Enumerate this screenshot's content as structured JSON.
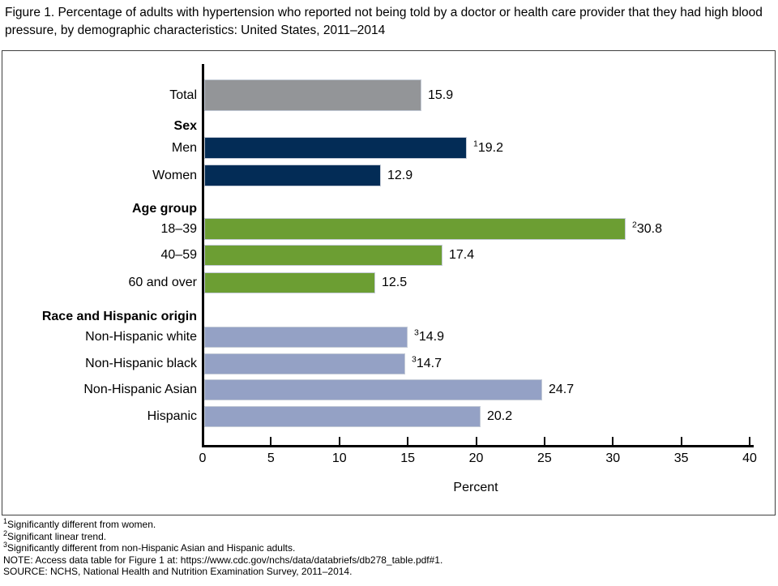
{
  "figure": {
    "title": "Figure 1. Percentage of adults with hypertension who reported not being told by a doctor or health care provider that they had high blood pressure, by demographic characteristics: United States, 2011–2014"
  },
  "chart_data": {
    "type": "bar",
    "orientation": "horizontal",
    "title": "Percentage of adults with hypertension who reported not being told by a doctor or health care provider that they had high blood pressure, by demographic characteristics: United States, 2011–2014",
    "xlabel": "Percent",
    "ylabel": "",
    "grid": false,
    "legend": "none",
    "axis": {
      "min": 0,
      "max": 40,
      "tick_interval": 5,
      "tick_labels": [
        "0",
        "5",
        "10",
        "15",
        "20",
        "25",
        "30",
        "35",
        "40"
      ]
    },
    "rows": [
      {
        "kind": "bar",
        "label": "Total",
        "value": 15.9,
        "value_label": "15.9",
        "sup": "",
        "color_key": "total"
      },
      {
        "kind": "header",
        "label": "Sex"
      },
      {
        "kind": "bar",
        "label": "Men",
        "value": 19.2,
        "value_label": "19.2",
        "sup": "1",
        "color_key": "sex"
      },
      {
        "kind": "bar",
        "label": "Women",
        "value": 12.9,
        "value_label": "12.9",
        "sup": "",
        "color_key": "sex"
      },
      {
        "kind": "header",
        "label": "Age group"
      },
      {
        "kind": "bar",
        "label": "18–39",
        "value": 30.8,
        "value_label": "30.8",
        "sup": "2",
        "color_key": "age"
      },
      {
        "kind": "bar",
        "label": "40–59",
        "value": 17.4,
        "value_label": "17.4",
        "sup": "",
        "color_key": "age"
      },
      {
        "kind": "bar",
        "label": "60 and over",
        "value": 12.5,
        "value_label": "12.5",
        "sup": "",
        "color_key": "age"
      },
      {
        "kind": "header",
        "label": "Race and Hispanic origin"
      },
      {
        "kind": "bar",
        "label": "Non-Hispanic white",
        "value": 14.9,
        "value_label": "14.9",
        "sup": "3",
        "color_key": "race"
      },
      {
        "kind": "bar",
        "label": "Non-Hispanic black",
        "value": 14.7,
        "value_label": "14.7",
        "sup": "3",
        "color_key": "race"
      },
      {
        "kind": "bar",
        "label": "Non-Hispanic Asian",
        "value": 24.7,
        "value_label": "24.7",
        "sup": "",
        "color_key": "race"
      },
      {
        "kind": "bar",
        "label": "Hispanic",
        "value": 20.2,
        "value_label": "20.2",
        "sup": "",
        "color_key": "race"
      }
    ],
    "colors": {
      "total": "#939598",
      "sex": "#032c56",
      "age": "#6c9e33",
      "race": "#94a1c5"
    }
  },
  "footnotes": [
    {
      "sup": "1",
      "text": "Significantly different from women."
    },
    {
      "sup": "2",
      "text": "Significant linear trend."
    },
    {
      "sup": "3",
      "text": "Significantly different from non-Hispanic Asian and Hispanic adults."
    },
    {
      "sup": "",
      "text": "NOTE: Access data table for Figure 1 at: https://www.cdc.gov/nchs/data/databriefs/db278_table.pdf#1."
    },
    {
      "sup": "",
      "text": "SOURCE: NCHS, National Health and Nutrition Examination Survey, 2011–2014."
    }
  ]
}
